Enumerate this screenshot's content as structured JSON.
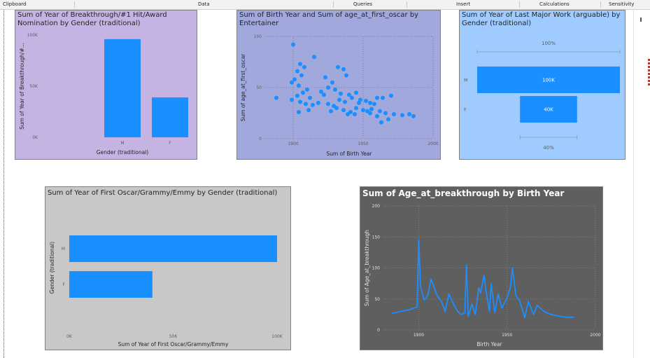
{
  "ribbon": {
    "groups": [
      "Clipboard",
      "Data",
      "Queries",
      "Insert",
      "Calculations",
      "Sensitivity"
    ]
  },
  "colors": {
    "bar": "#1a8fff",
    "card1_bg": "#c5b4e3",
    "card2_bg": "#a0a8dc",
    "card3_bg": "#9fcbff",
    "card4_bg": "#c8c8c8",
    "card5_bg": "#5f5f5f"
  },
  "charts": [
    {
      "id": "breakthrough-by-gender",
      "chart_data": {
        "type": "bar",
        "title": "Sum of Year of Breakthrough/#1 Hit/Award Nomination by Gender (traditional)",
        "xlabel": "Gender (traditional)",
        "ylabel": "Sum of Year of Breakthrough/#...",
        "categories": [
          "M",
          "F"
        ],
        "values": [
          96000,
          39000
        ],
        "ylim": [
          0,
          100000
        ],
        "yticks": [
          "0K",
          "50K",
          "100K"
        ]
      }
    },
    {
      "id": "birth-year-vs-age-first-oscar",
      "chart_data": {
        "type": "scatter",
        "title": "Sum of Birth Year and Sum of age_at_first_oscar by Entertainer",
        "xlabel": "Sum of Birth Year",
        "ylabel": "Sum of age_at_first_oscar",
        "xlim": [
          1880,
          2000
        ],
        "ylim": [
          0,
          100
        ],
        "xticks": [
          "1900",
          "1950",
          "2000"
        ],
        "yticks": [
          "0",
          "50",
          "100"
        ],
        "points": [
          [
            1900,
            92
          ],
          [
            1905,
            73
          ],
          [
            1903,
            66
          ],
          [
            1908,
            70
          ],
          [
            1906,
            62
          ],
          [
            1901,
            58
          ],
          [
            1899,
            55
          ],
          [
            1904,
            52
          ],
          [
            1915,
            80
          ],
          [
            1923,
            60
          ],
          [
            1910,
            48
          ],
          [
            1907,
            45
          ],
          [
            1903,
            42
          ],
          [
            1912,
            40
          ],
          [
            1888,
            40
          ],
          [
            1899,
            38
          ],
          [
            1905,
            36
          ],
          [
            1909,
            34
          ],
          [
            1914,
            33
          ],
          [
            1918,
            35
          ],
          [
            1920,
            46
          ],
          [
            1922,
            43
          ],
          [
            1925,
            50
          ],
          [
            1928,
            55
          ],
          [
            1932,
            70
          ],
          [
            1936,
            68
          ],
          [
            1938,
            62
          ],
          [
            1930,
            48
          ],
          [
            1934,
            44
          ],
          [
            1940,
            43
          ],
          [
            1945,
            45
          ],
          [
            1942,
            40
          ],
          [
            1948,
            38
          ],
          [
            1952,
            37
          ],
          [
            1955,
            35
          ],
          [
            1958,
            34
          ],
          [
            1960,
            40
          ],
          [
            1964,
            40
          ],
          [
            1970,
            42
          ],
          [
            1933,
            38
          ],
          [
            1937,
            36
          ],
          [
            1925,
            34
          ],
          [
            1929,
            32
          ],
          [
            1931,
            30
          ],
          [
            1945,
            30
          ],
          [
            1950,
            28
          ],
          [
            1953,
            27
          ],
          [
            1956,
            29
          ],
          [
            1962,
            27
          ],
          [
            1966,
            25
          ],
          [
            1972,
            24
          ],
          [
            1978,
            23
          ],
          [
            1983,
            24
          ],
          [
            1986,
            22
          ],
          [
            1941,
            26
          ],
          [
            1927,
            27
          ],
          [
            1936,
            28
          ],
          [
            1939,
            24
          ],
          [
            1944,
            24
          ],
          [
            1960,
            22
          ],
          [
            1963,
            16
          ],
          [
            1968,
            19
          ],
          [
            1911,
            28
          ],
          [
            1904,
            26
          ],
          [
            1947,
            35
          ],
          [
            1955,
            25
          ]
        ]
      }
    },
    {
      "id": "last-major-work-funnel",
      "chart_data": {
        "type": "funnel",
        "title": "Sum of Year of Last Major Work (arguable) by Gender (traditional)",
        "categories": [
          "M",
          "F"
        ],
        "values": [
          100000,
          40000
        ],
        "value_labels": [
          "100K",
          "40K"
        ],
        "percent_labels": [
          "100%",
          "40%"
        ]
      }
    },
    {
      "id": "first-oscar-by-gender",
      "chart_data": {
        "type": "bar",
        "orientation": "horizontal",
        "title": "Sum of Year of First Oscar/Grammy/Emmy by Gender (traditional)",
        "xlabel": "Sum of Year of First Oscar/Grammy/Emmy",
        "ylabel": "Gender (traditional)",
        "categories": [
          "M",
          "F"
        ],
        "values": [
          100000,
          40000
        ],
        "xlim": [
          0,
          100000
        ],
        "xticks": [
          "0K",
          "50K",
          "100K"
        ]
      }
    },
    {
      "id": "age-at-breakthrough-by-birth-year",
      "chart_data": {
        "type": "line",
        "title": "Sum of Age_at_breakthrough by Birth Year",
        "xlabel": "Birth Year",
        "ylabel": "Sum of Age_at_breakthrough",
        "xlim": [
          1880,
          2000
        ],
        "ylim": [
          0,
          200
        ],
        "xticks": [
          "1900",
          "1950",
          "2000"
        ],
        "yticks": [
          "0",
          "50",
          "100",
          "150",
          "200"
        ],
        "x": [
          1885,
          1890,
          1895,
          1899,
          1900,
          1901,
          1903,
          1905,
          1907,
          1910,
          1913,
          1915,
          1917,
          1920,
          1922,
          1924,
          1926,
          1927,
          1928,
          1929,
          1930,
          1932,
          1934,
          1935,
          1937,
          1938,
          1940,
          1941,
          1943,
          1945,
          1947,
          1950,
          1952,
          1953,
          1955,
          1957,
          1960,
          1962,
          1965,
          1967,
          1970,
          1972,
          1975,
          1980,
          1985,
          1988
        ],
        "y": [
          27,
          30,
          33,
          37,
          145,
          70,
          48,
          55,
          82,
          58,
          45,
          30,
          58,
          40,
          30,
          25,
          28,
          105,
          22,
          30,
          42,
          25,
          68,
          60,
          88,
          65,
          30,
          75,
          28,
          58,
          35,
          52,
          70,
          100,
          55,
          48,
          20,
          46,
          25,
          40,
          32,
          28,
          25,
          22,
          20,
          21
        ]
      }
    }
  ]
}
